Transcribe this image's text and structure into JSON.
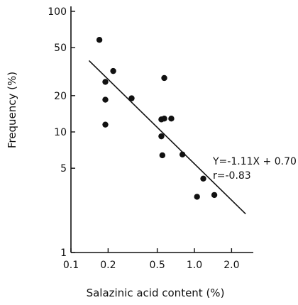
{
  "chart_data": {
    "type": "scatter",
    "xlabel": "Salazinic acid content (%)",
    "ylabel": "Frequency (%)",
    "x_scale": "log",
    "y_scale": "log",
    "xlim": [
      0.1,
      3.0
    ],
    "ylim": [
      1,
      110
    ],
    "x_ticks": [
      {
        "value": 0.1,
        "label": "0.1"
      },
      {
        "value": 0.2,
        "label": "0.2"
      },
      {
        "value": 0.5,
        "label": "0.5"
      },
      {
        "value": 1.0,
        "label": "1.0"
      },
      {
        "value": 2.0,
        "label": "2.0"
      }
    ],
    "y_ticks": [
      {
        "value": 1,
        "label": "1"
      },
      {
        "value": 5,
        "label": "5"
      },
      {
        "value": 10,
        "label": "10"
      },
      {
        "value": 20,
        "label": "20"
      },
      {
        "value": 50,
        "label": "50"
      },
      {
        "value": 100,
        "label": "100"
      }
    ],
    "points": [
      {
        "x": 0.17,
        "y": 58
      },
      {
        "x": 0.22,
        "y": 32
      },
      {
        "x": 0.19,
        "y": 26
      },
      {
        "x": 0.19,
        "y": 18.5
      },
      {
        "x": 0.19,
        "y": 11.5
      },
      {
        "x": 0.31,
        "y": 19
      },
      {
        "x": 0.57,
        "y": 28
      },
      {
        "x": 0.54,
        "y": 12.7
      },
      {
        "x": 0.57,
        "y": 12.9
      },
      {
        "x": 0.65,
        "y": 12.9
      },
      {
        "x": 0.54,
        "y": 9.2
      },
      {
        "x": 0.55,
        "y": 6.4
      },
      {
        "x": 0.8,
        "y": 6.5
      },
      {
        "x": 1.18,
        "y": 4.1
      },
      {
        "x": 1.05,
        "y": 2.9
      },
      {
        "x": 1.45,
        "y": 3.0
      }
    ],
    "regression_line": {
      "x_start": 0.14,
      "x_end": 2.6
    },
    "annotation": {
      "equation": "Y=-1.11X + 0.70",
      "r_value": "r=-0.83"
    },
    "grid": false,
    "legend": "none"
  }
}
